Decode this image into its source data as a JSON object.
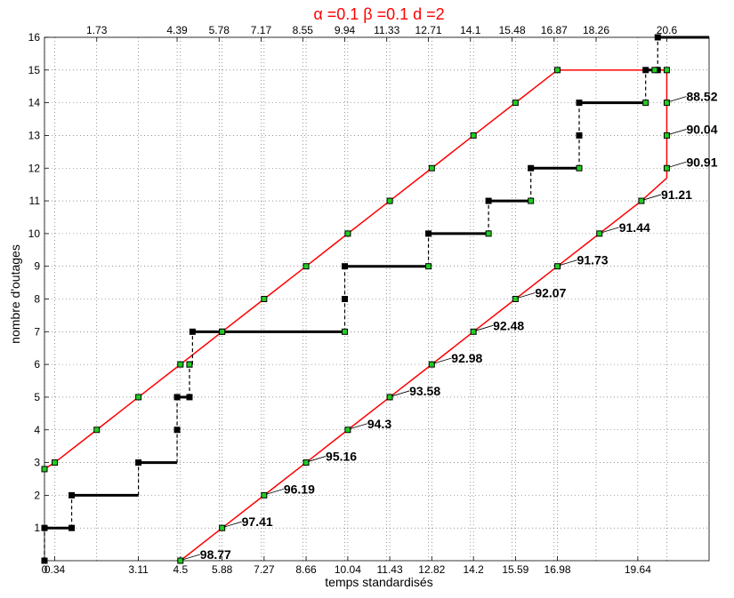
{
  "chart_data": {
    "type": "line",
    "title": "α =0.1 β =0.1 d =2",
    "xlabel": "temps standardisés",
    "ylabel": "nombre d'outages",
    "xlim": [
      0,
      22
    ],
    "ylim": [
      0,
      16
    ],
    "grid": true,
    "title_color": "#ff0000",
    "upper_line_color": "#ff0000",
    "lower_line_color": "#ff0000",
    "step_color": "#000000",
    "marker_color": "#22cc22",
    "y_ticks": [
      "1",
      "2",
      "3",
      "4",
      "5",
      "6",
      "7",
      "8",
      "9",
      "10",
      "11",
      "12",
      "13",
      "14",
      "15",
      "16"
    ],
    "bottom_ticks": [
      {
        "x": 0,
        "label": "0"
      },
      {
        "x": 0.34,
        "label": "0.34"
      },
      {
        "x": 3.11,
        "label": "3.11"
      },
      {
        "x": 4.5,
        "label": "4.5"
      },
      {
        "x": 5.88,
        "label": "5.88"
      },
      {
        "x": 7.27,
        "label": "7.27"
      },
      {
        "x": 8.66,
        "label": "8.66"
      },
      {
        "x": 10.04,
        "label": "10.04"
      },
      {
        "x": 11.43,
        "label": "11.43"
      },
      {
        "x": 12.82,
        "label": "12.82"
      },
      {
        "x": 14.2,
        "label": "14.2"
      },
      {
        "x": 15.59,
        "label": "15.59"
      },
      {
        "x": 16.98,
        "label": "16.98"
      },
      {
        "x": 19.64,
        "label": "19.64"
      }
    ],
    "top_ticks": [
      {
        "x": 1.73,
        "label": "1.73"
      },
      {
        "x": 4.39,
        "label": "4.39"
      },
      {
        "x": 5.78,
        "label": "5.78"
      },
      {
        "x": 7.17,
        "label": "7.17"
      },
      {
        "x": 8.55,
        "label": "8.55"
      },
      {
        "x": 9.94,
        "label": "9.94"
      },
      {
        "x": 11.33,
        "label": "11.33"
      },
      {
        "x": 12.71,
        "label": "12.71"
      },
      {
        "x": 14.1,
        "label": "14.1"
      },
      {
        "x": 15.48,
        "label": "15.48"
      },
      {
        "x": 16.87,
        "label": "16.87"
      },
      {
        "x": 18.26,
        "label": "18.26"
      },
      {
        "x": 20.6,
        "label": "20.6"
      }
    ],
    "upper_boundary": [
      [
        0,
        2.8
      ],
      [
        0.34,
        3
      ],
      [
        1.73,
        4
      ],
      [
        3.11,
        5
      ],
      [
        4.5,
        6
      ],
      [
        5.88,
        7
      ],
      [
        7.27,
        8
      ],
      [
        8.66,
        9
      ],
      [
        10.04,
        10
      ],
      [
        11.43,
        11
      ],
      [
        12.82,
        12
      ],
      [
        14.2,
        13
      ],
      [
        15.59,
        14
      ],
      [
        16.98,
        15
      ],
      [
        20.6,
        15
      ],
      [
        20.6,
        14
      ],
      [
        20.6,
        13
      ],
      [
        20.6,
        11.7
      ]
    ],
    "lower_boundary": [
      [
        4.5,
        0
      ],
      [
        5.88,
        1
      ],
      [
        7.27,
        2
      ],
      [
        8.66,
        3
      ],
      [
        10.04,
        4
      ],
      [
        11.43,
        5
      ],
      [
        12.82,
        6
      ],
      [
        14.2,
        7
      ],
      [
        15.59,
        8
      ],
      [
        16.98,
        9
      ],
      [
        18.37,
        10
      ],
      [
        19.76,
        11
      ],
      [
        20.6,
        11.7
      ]
    ],
    "upper_markers": [
      [
        0,
        2.8
      ],
      [
        0.34,
        3
      ],
      [
        1.73,
        4
      ],
      [
        3.11,
        5
      ],
      [
        4.5,
        6
      ],
      [
        5.88,
        7
      ],
      [
        7.27,
        8
      ],
      [
        8.66,
        9
      ],
      [
        10.04,
        10
      ],
      [
        11.43,
        11
      ],
      [
        12.82,
        12
      ],
      [
        14.2,
        13
      ],
      [
        15.59,
        14
      ],
      [
        16.98,
        15
      ],
      [
        20.6,
        15
      ],
      [
        20.6,
        14
      ],
      [
        20.6,
        13
      ],
      [
        20.6,
        12
      ]
    ],
    "lower_markers": [
      [
        4.5,
        0
      ],
      [
        5.88,
        1
      ],
      [
        7.27,
        2
      ],
      [
        8.66,
        3
      ],
      [
        10.04,
        4
      ],
      [
        11.43,
        5
      ],
      [
        12.82,
        6
      ],
      [
        14.2,
        7
      ],
      [
        15.59,
        8
      ],
      [
        16.98,
        9
      ],
      [
        18.37,
        10
      ],
      [
        19.76,
        11
      ]
    ],
    "step_points": [
      [
        0,
        0
      ],
      [
        0,
        1
      ],
      [
        0.9,
        1
      ],
      [
        0.9,
        2
      ],
      [
        3.11,
        2
      ],
      [
        3.11,
        3
      ],
      [
        4.39,
        3
      ],
      [
        4.39,
        5
      ],
      [
        4.8,
        5
      ],
      [
        4.8,
        6
      ],
      [
        4.9,
        6
      ],
      [
        4.9,
        7
      ],
      [
        9.94,
        7
      ],
      [
        9.94,
        9
      ],
      [
        12.71,
        9
      ],
      [
        12.71,
        10
      ],
      [
        14.7,
        10
      ],
      [
        14.7,
        11
      ],
      [
        16.1,
        11
      ],
      [
        16.1,
        12
      ],
      [
        17.7,
        12
      ],
      [
        17.7,
        14
      ],
      [
        19.9,
        14
      ],
      [
        19.9,
        15
      ],
      [
        20.3,
        15
      ],
      [
        20.3,
        16
      ],
      [
        22,
        16
      ]
    ],
    "step_markers": [
      [
        0,
        0
      ],
      [
        0,
        1
      ],
      [
        0.9,
        1
      ],
      [
        0.9,
        2
      ],
      [
        3.11,
        3
      ],
      [
        4.39,
        4
      ],
      [
        4.39,
        5
      ],
      [
        4.8,
        5
      ],
      [
        4.8,
        6
      ],
      [
        4.9,
        7
      ],
      [
        9.94,
        8
      ],
      [
        9.94,
        9
      ],
      [
        12.71,
        10
      ],
      [
        14.7,
        11
      ],
      [
        16.1,
        12
      ],
      [
        17.7,
        13
      ],
      [
        17.7,
        14
      ],
      [
        19.9,
        15
      ],
      [
        20.3,
        15
      ],
      [
        20.3,
        16
      ]
    ],
    "step_open_markers": [
      [
        4.8,
        6
      ],
      [
        5.88,
        7
      ],
      [
        9.94,
        7
      ],
      [
        12.71,
        9
      ],
      [
        14.7,
        10
      ],
      [
        16.1,
        11
      ],
      [
        17.7,
        12
      ],
      [
        19.9,
        14
      ],
      [
        20.2,
        15
      ]
    ],
    "percent_labels": [
      {
        "x": 4.5,
        "y": 0,
        "label": "98.77"
      },
      {
        "x": 5.88,
        "y": 1,
        "label": "97.41"
      },
      {
        "x": 7.27,
        "y": 2,
        "label": "96.19"
      },
      {
        "x": 8.66,
        "y": 3,
        "label": "95.16"
      },
      {
        "x": 10.04,
        "y": 4,
        "label": "94.3"
      },
      {
        "x": 11.43,
        "y": 5,
        "label": "93.58"
      },
      {
        "x": 12.82,
        "y": 6,
        "label": "92.98"
      },
      {
        "x": 14.2,
        "y": 7,
        "label": "92.48"
      },
      {
        "x": 15.59,
        "y": 8,
        "label": "92.07"
      },
      {
        "x": 16.98,
        "y": 9,
        "label": "91.73"
      },
      {
        "x": 18.37,
        "y": 10,
        "label": "91.44"
      },
      {
        "x": 19.76,
        "y": 11,
        "label": "91.21"
      },
      {
        "x": 20.6,
        "y": 12,
        "label": "90.91"
      },
      {
        "x": 20.6,
        "y": 13,
        "label": "90.04"
      },
      {
        "x": 20.6,
        "y": 14,
        "label": "88.52"
      }
    ]
  }
}
